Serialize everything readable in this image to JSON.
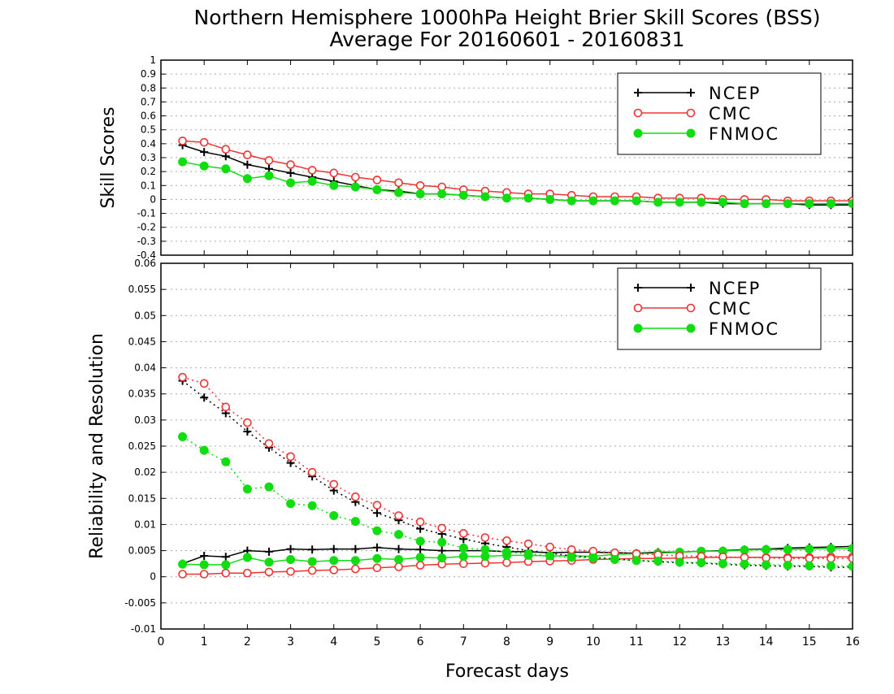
{
  "title_line1": "Northern Hemisphere 1000hPa Height Brier Skill Scores (BSS)",
  "title_line2": "Average For 20160601 - 20160831",
  "xlabel": "Forecast days",
  "colors": {
    "NCEP": "#000000",
    "CMC": "#ee3333",
    "FNMOC": "#11dd11",
    "grid": "#aaaaaa"
  },
  "chart_data": [
    {
      "type": "line",
      "title": "",
      "ylabel": "Skill Scores",
      "xlim": [
        0,
        16
      ],
      "ylim": [
        -0.4,
        1
      ],
      "x_ticks": [
        "0",
        "1",
        "2",
        "3",
        "4",
        "5",
        "6",
        "7",
        "8",
        "9",
        "10",
        "11",
        "12",
        "13",
        "14",
        "15",
        "16"
      ],
      "y_ticks": [
        "1",
        "0.9",
        "0.8",
        "0.7",
        "0.6",
        "0.5",
        "0.4",
        "0.3",
        "0.2",
        "0.1",
        "0",
        "-0.1",
        "-0.2",
        "-0.3",
        "-0.4"
      ],
      "grid": true,
      "legend_position": "top-right",
      "x": [
        0.5,
        1,
        1.5,
        2,
        2.5,
        3,
        3.5,
        4,
        4.5,
        5,
        5.5,
        6,
        6.5,
        7,
        7.5,
        8,
        8.5,
        9,
        9.5,
        10,
        10.5,
        11,
        11.5,
        12,
        12.5,
        13,
        13.5,
        14,
        14.5,
        15,
        15.5,
        16
      ],
      "series": [
        {
          "name": "NCEP",
          "style": "solid",
          "marker": "plus",
          "values": [
            0.39,
            0.34,
            0.31,
            0.25,
            0.22,
            0.19,
            0.16,
            0.13,
            0.1,
            0.07,
            0.06,
            0.04,
            0.04,
            0.03,
            0.02,
            0.01,
            0.01,
            0.0,
            -0.01,
            -0.01,
            -0.01,
            -0.01,
            -0.02,
            -0.02,
            -0.02,
            -0.03,
            -0.03,
            -0.03,
            -0.03,
            -0.04,
            -0.04,
            -0.04
          ]
        },
        {
          "name": "CMC",
          "style": "solid",
          "marker": "open-circle",
          "values": [
            0.42,
            0.41,
            0.36,
            0.32,
            0.28,
            0.25,
            0.21,
            0.19,
            0.16,
            0.14,
            0.12,
            0.1,
            0.09,
            0.07,
            0.06,
            0.05,
            0.04,
            0.04,
            0.03,
            0.02,
            0.02,
            0.02,
            0.01,
            0.01,
            0.01,
            0.0,
            0.0,
            0.0,
            -0.01,
            -0.01,
            -0.01,
            -0.01
          ]
        },
        {
          "name": "FNMOC",
          "style": "solid",
          "marker": "filled-circle",
          "values": [
            0.27,
            0.24,
            0.22,
            0.15,
            0.17,
            0.12,
            0.13,
            0.1,
            0.09,
            0.07,
            0.05,
            0.04,
            0.04,
            0.03,
            0.02,
            0.01,
            0.01,
            0.0,
            -0.01,
            -0.01,
            -0.01,
            -0.01,
            -0.02,
            -0.02,
            -0.02,
            -0.02,
            -0.03,
            -0.03,
            -0.03,
            -0.03,
            -0.03,
            -0.03
          ]
        }
      ]
    },
    {
      "type": "line",
      "title": "",
      "ylabel": "Reliability and Resolution",
      "xlim": [
        0,
        16
      ],
      "ylim": [
        -0.01,
        0.06
      ],
      "x_ticks": [
        "0",
        "1",
        "2",
        "3",
        "4",
        "5",
        "6",
        "7",
        "8",
        "9",
        "10",
        "11",
        "12",
        "13",
        "14",
        "15",
        "16"
      ],
      "y_ticks": [
        "0.06",
        "0.055",
        "0.05",
        "0.045",
        "0.04",
        "0.035",
        "0.03",
        "0.025",
        "0.02",
        "0.015",
        "0.01",
        "0.005",
        "0",
        "-0.005",
        "-0.01"
      ],
      "grid": true,
      "legend_position": "top-right",
      "x": [
        0.5,
        1,
        1.5,
        2,
        2.5,
        3,
        3.5,
        4,
        4.5,
        5,
        5.5,
        6,
        6.5,
        7,
        7.5,
        8,
        8.5,
        9,
        9.5,
        10,
        10.5,
        11,
        11.5,
        12,
        12.5,
        13,
        13.5,
        14,
        14.5,
        15,
        15.5,
        16
      ],
      "series": [
        {
          "name": "NCEP",
          "style": "solid",
          "marker": "plus",
          "values": [
            0.0025,
            0.004,
            0.0038,
            0.005,
            0.0048,
            0.0053,
            0.0052,
            0.0053,
            0.0053,
            0.0056,
            0.0053,
            0.0052,
            0.005,
            0.005,
            0.005,
            0.0048,
            0.0048,
            0.0046,
            0.0047,
            0.0047,
            0.0046,
            0.0045,
            0.0047,
            0.0047,
            0.0049,
            0.005,
            0.0052,
            0.0053,
            0.0055,
            0.0056,
            0.0057,
            0.0058
          ]
        },
        {
          "name": "CMC",
          "style": "solid",
          "marker": "open-circle",
          "values": [
            0.0005,
            0.0005,
            0.0007,
            0.0007,
            0.0009,
            0.001,
            0.0012,
            0.0013,
            0.0015,
            0.0017,
            0.0019,
            0.0022,
            0.0024,
            0.0025,
            0.0026,
            0.0027,
            0.0029,
            0.003,
            0.0031,
            0.0033,
            0.0034,
            0.0035,
            0.0035,
            0.0036,
            0.0037,
            0.0037,
            0.0037,
            0.0037,
            0.0037,
            0.0037,
            0.0038,
            0.0038
          ]
        },
        {
          "name": "FNMOC",
          "style": "solid",
          "marker": "filled-circle",
          "values": [
            0.0024,
            0.0023,
            0.0023,
            0.0037,
            0.0028,
            0.0033,
            0.0029,
            0.0031,
            0.0031,
            0.0035,
            0.0033,
            0.0037,
            0.0036,
            0.0039,
            0.0039,
            0.0041,
            0.0041,
            0.004,
            0.004,
            0.0039,
            0.0043,
            0.0044,
            0.0045,
            0.0047,
            0.0049,
            0.0049,
            0.0051,
            0.0052,
            0.0052,
            0.0053,
            0.0054,
            0.0054
          ]
        },
        {
          "name": "NCEP",
          "style": "dotted",
          "marker": "plus",
          "values": [
            0.0375,
            0.0343,
            0.0313,
            0.0278,
            0.0247,
            0.0218,
            0.0192,
            0.0165,
            0.0143,
            0.0122,
            0.0108,
            0.0092,
            0.0082,
            0.0072,
            0.0064,
            0.0057,
            0.005,
            0.0045,
            0.004,
            0.0037,
            0.0034,
            0.0031,
            0.0029,
            0.0027,
            0.0026,
            0.0024,
            0.0022,
            0.0021,
            0.002,
            0.002,
            0.0018,
            0.0018
          ]
        },
        {
          "name": "CMC",
          "style": "dotted",
          "marker": "open-circle",
          "values": [
            0.0382,
            0.037,
            0.0325,
            0.0295,
            0.0255,
            0.023,
            0.02,
            0.0177,
            0.0153,
            0.0137,
            0.0117,
            0.0105,
            0.0093,
            0.0083,
            0.0075,
            0.0069,
            0.0063,
            0.0057,
            0.0052,
            0.0049,
            0.0046,
            0.0044,
            0.0042,
            0.004,
            0.0039,
            0.0038,
            0.0037,
            0.0036,
            0.0035,
            0.0035,
            0.0035,
            0.0035
          ]
        },
        {
          "name": "FNMOC",
          "style": "dotted",
          "marker": "filled-circle",
          "values": [
            0.0268,
            0.0242,
            0.022,
            0.0168,
            0.0172,
            0.014,
            0.0136,
            0.0117,
            0.0106,
            0.0088,
            0.0081,
            0.0068,
            0.0066,
            0.0055,
            0.0052,
            0.0047,
            0.0044,
            0.004,
            0.0037,
            0.0036,
            0.0033,
            0.0031,
            0.003,
            0.0028,
            0.0027,
            0.0025,
            0.0024,
            0.0023,
            0.0022,
            0.0021,
            0.0021,
            0.002
          ]
        }
      ]
    }
  ]
}
